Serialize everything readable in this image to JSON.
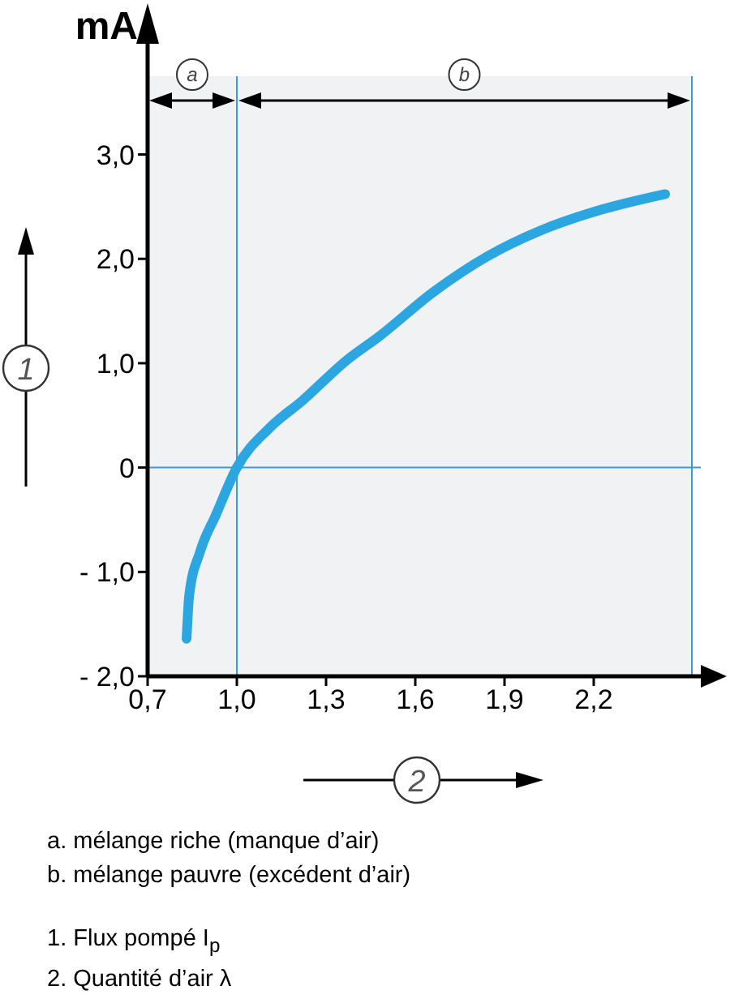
{
  "chart_data": {
    "type": "line",
    "xlabel": "2",
    "ylabel": "1",
    "x": [
      0.831,
      0.84,
      0.876,
      0.93,
      1.0,
      1.11,
      1.22,
      1.37,
      1.48,
      1.66,
      1.84,
      2.02,
      2.2,
      2.44
    ],
    "series": [
      {
        "color": "#2ba6e1",
        "values": [
          -1.64,
          -1.22,
          -0.81,
          -0.45,
          0,
          0.38,
          0.64,
          1.03,
          1.26,
          1.68,
          2.02,
          2.27,
          2.45,
          2.62
        ]
      }
    ],
    "xlim": [
      0.7,
      2.56
    ],
    "ylim": [
      -2,
      3.75
    ],
    "xticks": [
      {
        "value": 0.7,
        "label": "0,7"
      },
      {
        "value": 1.0,
        "label": "1,0"
      },
      {
        "value": 1.3,
        "label": "1,3"
      },
      {
        "value": 1.6,
        "label": "1,6"
      },
      {
        "value": 1.9,
        "label": "1,9"
      },
      {
        "value": 2.2,
        "label": "2,2"
      }
    ],
    "yticks": [
      {
        "value": -2,
        "label": "- 2,0"
      },
      {
        "value": -1,
        "label": "- 1,0"
      },
      {
        "value": 0,
        "label": "0"
      },
      {
        "value": 1,
        "label": "1,0"
      },
      {
        "value": 2,
        "label": "2,0"
      },
      {
        "value": 3,
        "label": "3,0"
      }
    ],
    "ref_lines": [
      {
        "axis": "x",
        "value": 1.0,
        "color": "#3a9ad9"
      },
      {
        "axis": "x",
        "value": 2.53,
        "color": "#3a9ad9"
      },
      {
        "axis": "y",
        "value": 0,
        "color": "#3a9ad9"
      }
    ],
    "bands": [
      {
        "axis": "x",
        "from": 0.7,
        "to": 1.0,
        "label": "a",
        "color": "#f1f2f4"
      },
      {
        "axis": "x",
        "from": 1.0,
        "to": 2.53,
        "label": "b",
        "color": "#f1f2f4"
      }
    ],
    "marker": "none",
    "line_style": "solid",
    "grid": false,
    "annotations": [
      "mA",
      "a.  mélange riche (manque d’air)",
      "b. mélange pauvre (excédent d’air)",
      "1.  Flux pompé I$_{p}$",
      "2.  Quantité d’air λ"
    ]
  }
}
